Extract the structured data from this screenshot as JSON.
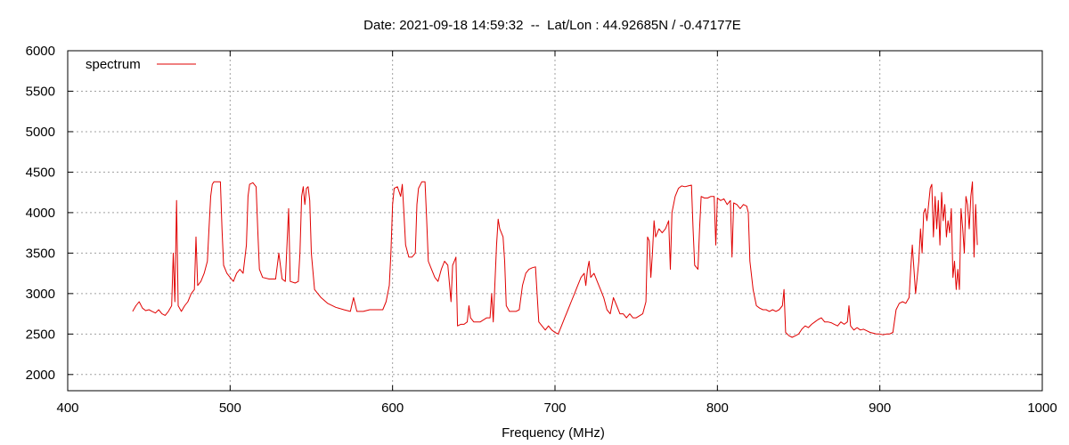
{
  "chart_data": {
    "type": "line",
    "title": "Date: 2021-09-18 14:59:32  --  Lat/Lon : 44.92685N / -0.47177E",
    "xlabel": "Frequency (MHz)",
    "ylabel": "",
    "xlim": [
      400,
      1000
    ],
    "ylim": [
      1800,
      6000
    ],
    "x_ticks": [
      400,
      500,
      600,
      700,
      800,
      900,
      1000
    ],
    "y_ticks": [
      2000,
      2500,
      3000,
      3500,
      4000,
      4500,
      5000,
      5500,
      6000
    ],
    "grid": true,
    "legend_position": "top-left",
    "series": [
      {
        "name": "spectrum",
        "color": "#e00000",
        "points": [
          [
            440,
            2780
          ],
          [
            442,
            2850
          ],
          [
            444,
            2900
          ],
          [
            446,
            2820
          ],
          [
            448,
            2790
          ],
          [
            450,
            2800
          ],
          [
            452,
            2780
          ],
          [
            454,
            2760
          ],
          [
            456,
            2800
          ],
          [
            458,
            2750
          ],
          [
            460,
            2730
          ],
          [
            462,
            2780
          ],
          [
            464,
            2850
          ],
          [
            465,
            3500
          ],
          [
            466,
            2900
          ],
          [
            467,
            4150
          ],
          [
            468,
            2850
          ],
          [
            470,
            2780
          ],
          [
            472,
            2850
          ],
          [
            474,
            2900
          ],
          [
            476,
            3000
          ],
          [
            478,
            3050
          ],
          [
            479,
            3700
          ],
          [
            480,
            3100
          ],
          [
            482,
            3150
          ],
          [
            484,
            3250
          ],
          [
            486,
            3400
          ],
          [
            487,
            3800
          ],
          [
            488,
            4200
          ],
          [
            489,
            4350
          ],
          [
            490,
            4380
          ],
          [
            492,
            4380
          ],
          [
            494,
            4380
          ],
          [
            495,
            3800
          ],
          [
            496,
            3350
          ],
          [
            498,
            3250
          ],
          [
            500,
            3200
          ],
          [
            502,
            3150
          ],
          [
            504,
            3250
          ],
          [
            506,
            3300
          ],
          [
            508,
            3250
          ],
          [
            510,
            3600
          ],
          [
            511,
            4200
          ],
          [
            512,
            4350
          ],
          [
            514,
            4370
          ],
          [
            516,
            4320
          ],
          [
            517,
            3800
          ],
          [
            518,
            3300
          ],
          [
            520,
            3200
          ],
          [
            524,
            3180
          ],
          [
            528,
            3180
          ],
          [
            530,
            3500
          ],
          [
            532,
            3180
          ],
          [
            534,
            3150
          ],
          [
            536,
            4050
          ],
          [
            537,
            3150
          ],
          [
            540,
            3130
          ],
          [
            542,
            3150
          ],
          [
            543,
            3500
          ],
          [
            544,
            4200
          ],
          [
            545,
            4320
          ],
          [
            546,
            4100
          ],
          [
            547,
            4300
          ],
          [
            548,
            4320
          ],
          [
            549,
            4150
          ],
          [
            550,
            3500
          ],
          [
            552,
            3050
          ],
          [
            556,
            2950
          ],
          [
            560,
            2880
          ],
          [
            565,
            2830
          ],
          [
            570,
            2800
          ],
          [
            574,
            2780
          ],
          [
            576,
            2950
          ],
          [
            578,
            2780
          ],
          [
            582,
            2780
          ],
          [
            586,
            2800
          ],
          [
            590,
            2800
          ],
          [
            594,
            2800
          ],
          [
            596,
            2900
          ],
          [
            598,
            3100
          ],
          [
            599,
            3500
          ],
          [
            600,
            4100
          ],
          [
            601,
            4300
          ],
          [
            603,
            4320
          ],
          [
            605,
            4200
          ],
          [
            606,
            4350
          ],
          [
            607,
            4000
          ],
          [
            608,
            3600
          ],
          [
            610,
            3450
          ],
          [
            612,
            3450
          ],
          [
            614,
            3500
          ],
          [
            615,
            4100
          ],
          [
            616,
            4300
          ],
          [
            618,
            4380
          ],
          [
            620,
            4380
          ],
          [
            621,
            3900
          ],
          [
            622,
            3400
          ],
          [
            624,
            3300
          ],
          [
            626,
            3200
          ],
          [
            628,
            3150
          ],
          [
            630,
            3300
          ],
          [
            632,
            3400
          ],
          [
            634,
            3350
          ],
          [
            636,
            2900
          ],
          [
            637,
            3350
          ],
          [
            638,
            3400
          ],
          [
            639,
            3450
          ],
          [
            640,
            2600
          ],
          [
            642,
            2620
          ],
          [
            644,
            2620
          ],
          [
            646,
            2650
          ],
          [
            647,
            2850
          ],
          [
            648,
            2700
          ],
          [
            650,
            2650
          ],
          [
            654,
            2650
          ],
          [
            658,
            2700
          ],
          [
            660,
            2700
          ],
          [
            661,
            3000
          ],
          [
            662,
            2650
          ],
          [
            664,
            3600
          ],
          [
            665,
            3920
          ],
          [
            666,
            3800
          ],
          [
            668,
            3700
          ],
          [
            669,
            3400
          ],
          [
            670,
            2850
          ],
          [
            672,
            2780
          ],
          [
            676,
            2780
          ],
          [
            678,
            2800
          ],
          [
            680,
            3100
          ],
          [
            682,
            3250
          ],
          [
            684,
            3300
          ],
          [
            686,
            3320
          ],
          [
            688,
            3330
          ],
          [
            689,
            3000
          ],
          [
            690,
            2650
          ],
          [
            692,
            2600
          ],
          [
            694,
            2550
          ],
          [
            696,
            2600
          ],
          [
            698,
            2550
          ],
          [
            700,
            2520
          ],
          [
            702,
            2500
          ],
          [
            704,
            2600
          ],
          [
            706,
            2700
          ],
          [
            708,
            2800
          ],
          [
            710,
            2900
          ],
          [
            712,
            3000
          ],
          [
            714,
            3100
          ],
          [
            716,
            3200
          ],
          [
            718,
            3250
          ],
          [
            719,
            3100
          ],
          [
            720,
            3300
          ],
          [
            721,
            3400
          ],
          [
            722,
            3200
          ],
          [
            724,
            3250
          ],
          [
            726,
            3150
          ],
          [
            728,
            3050
          ],
          [
            730,
            2950
          ],
          [
            732,
            2800
          ],
          [
            734,
            2750
          ],
          [
            736,
            2950
          ],
          [
            738,
            2850
          ],
          [
            740,
            2750
          ],
          [
            742,
            2750
          ],
          [
            744,
            2700
          ],
          [
            746,
            2750
          ],
          [
            748,
            2700
          ],
          [
            750,
            2700
          ],
          [
            754,
            2750
          ],
          [
            756,
            2900
          ],
          [
            757,
            3700
          ],
          [
            758,
            3650
          ],
          [
            759,
            3200
          ],
          [
            760,
            3500
          ],
          [
            761,
            3900
          ],
          [
            762,
            3700
          ],
          [
            764,
            3800
          ],
          [
            766,
            3750
          ],
          [
            768,
            3800
          ],
          [
            770,
            3900
          ],
          [
            771,
            3300
          ],
          [
            772,
            4000
          ],
          [
            774,
            4200
          ],
          [
            776,
            4300
          ],
          [
            778,
            4330
          ],
          [
            780,
            4320
          ],
          [
            782,
            4330
          ],
          [
            784,
            4340
          ],
          [
            785,
            3800
          ],
          [
            786,
            3350
          ],
          [
            788,
            3300
          ],
          [
            789,
            3800
          ],
          [
            790,
            4200
          ],
          [
            792,
            4180
          ],
          [
            794,
            4180
          ],
          [
            796,
            4200
          ],
          [
            798,
            4200
          ],
          [
            799,
            3600
          ],
          [
            800,
            4180
          ],
          [
            802,
            4150
          ],
          [
            804,
            4170
          ],
          [
            806,
            4100
          ],
          [
            808,
            4150
          ],
          [
            809,
            3450
          ],
          [
            810,
            4120
          ],
          [
            812,
            4100
          ],
          [
            814,
            4050
          ],
          [
            816,
            4100
          ],
          [
            818,
            4080
          ],
          [
            819,
            4000
          ],
          [
            820,
            3400
          ],
          [
            822,
            3050
          ],
          [
            824,
            2850
          ],
          [
            826,
            2820
          ],
          [
            828,
            2800
          ],
          [
            830,
            2800
          ],
          [
            832,
            2780
          ],
          [
            834,
            2800
          ],
          [
            836,
            2780
          ],
          [
            838,
            2800
          ],
          [
            840,
            2850
          ],
          [
            841,
            3050
          ],
          [
            842,
            2520
          ],
          [
            844,
            2480
          ],
          [
            846,
            2460
          ],
          [
            848,
            2480
          ],
          [
            850,
            2500
          ],
          [
            852,
            2560
          ],
          [
            854,
            2600
          ],
          [
            856,
            2580
          ],
          [
            858,
            2620
          ],
          [
            860,
            2650
          ],
          [
            862,
            2680
          ],
          [
            864,
            2700
          ],
          [
            866,
            2650
          ],
          [
            868,
            2650
          ],
          [
            870,
            2640
          ],
          [
            872,
            2620
          ],
          [
            874,
            2600
          ],
          [
            876,
            2650
          ],
          [
            878,
            2620
          ],
          [
            880,
            2650
          ],
          [
            881,
            2850
          ],
          [
            882,
            2600
          ],
          [
            884,
            2550
          ],
          [
            886,
            2580
          ],
          [
            888,
            2550
          ],
          [
            890,
            2560
          ],
          [
            892,
            2540
          ],
          [
            894,
            2520
          ],
          [
            896,
            2510
          ],
          [
            898,
            2500
          ],
          [
            900,
            2500
          ],
          [
            902,
            2490
          ],
          [
            904,
            2500
          ],
          [
            906,
            2500
          ],
          [
            908,
            2520
          ],
          [
            910,
            2800
          ],
          [
            912,
            2880
          ],
          [
            914,
            2900
          ],
          [
            916,
            2880
          ],
          [
            918,
            2950
          ],
          [
            919,
            3300
          ],
          [
            920,
            3600
          ],
          [
            922,
            3000
          ],
          [
            924,
            3400
          ],
          [
            925,
            3800
          ],
          [
            926,
            3500
          ],
          [
            927,
            4000
          ],
          [
            928,
            4050
          ],
          [
            929,
            3900
          ],
          [
            930,
            4100
          ],
          [
            931,
            4300
          ],
          [
            932,
            4350
          ],
          [
            933,
            3700
          ],
          [
            934,
            4200
          ],
          [
            935,
            3800
          ],
          [
            936,
            4150
          ],
          [
            937,
            3600
          ],
          [
            938,
            4250
          ],
          [
            939,
            3900
          ],
          [
            940,
            4100
          ],
          [
            941,
            3700
          ],
          [
            942,
            3900
          ],
          [
            943,
            3750
          ],
          [
            944,
            4050
          ],
          [
            945,
            3200
          ],
          [
            946,
            3400
          ],
          [
            947,
            3050
          ],
          [
            948,
            3300
          ],
          [
            949,
            3050
          ],
          [
            950,
            4050
          ],
          [
            951,
            3800
          ],
          [
            952,
            3500
          ],
          [
            953,
            4200
          ],
          [
            954,
            4100
          ],
          [
            955,
            3800
          ],
          [
            956,
            4200
          ],
          [
            957,
            4380
          ],
          [
            958,
            3450
          ],
          [
            959,
            4100
          ],
          [
            960,
            3600
          ]
        ]
      }
    ]
  }
}
